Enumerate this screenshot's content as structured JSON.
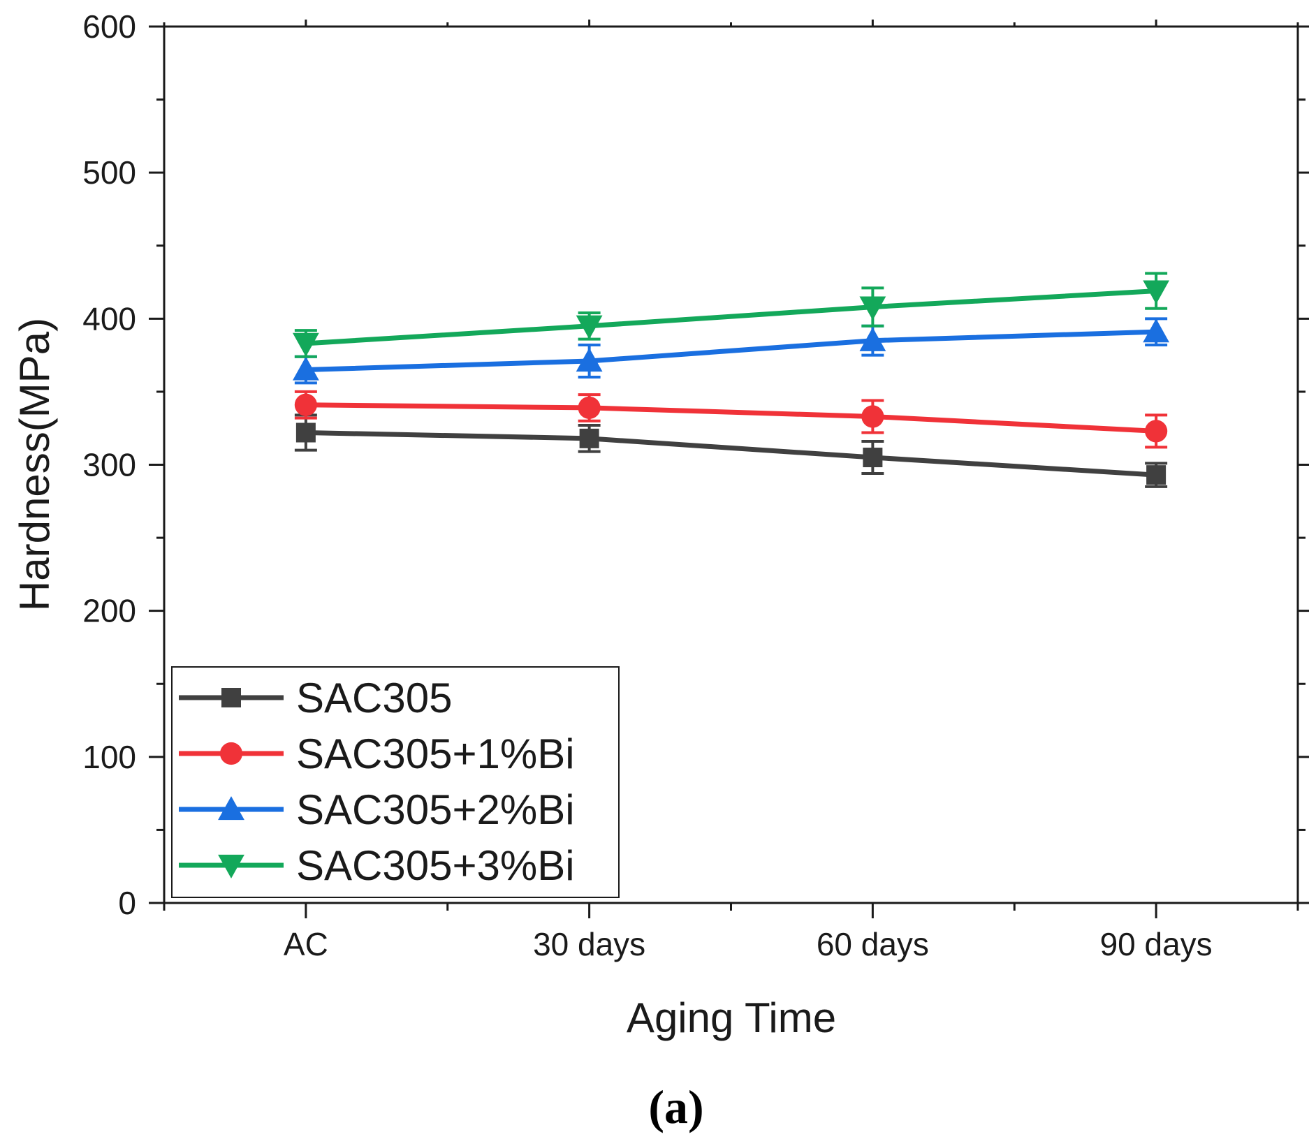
{
  "chart_data": {
    "type": "line",
    "title": "",
    "xlabel": "Aging Time",
    "ylabel": "Hardness(MPa)",
    "ylim": [
      0,
      600
    ],
    "yticks": [
      "0",
      "100",
      "200",
      "300",
      "400",
      "500",
      "600"
    ],
    "categories": [
      "AC",
      "30 days",
      "60 days",
      "90 days"
    ],
    "grid": false,
    "legend_position": "bottom-left",
    "panel_label": "(a)",
    "series": [
      {
        "name": "SAC305",
        "color": "#404040",
        "marker": "square",
        "values": [
          322,
          318,
          305,
          293
        ],
        "errors": [
          12,
          9,
          11,
          8
        ]
      },
      {
        "name": "SAC305+1%Bi",
        "color": "#f03238",
        "marker": "circle",
        "values": [
          341,
          339,
          333,
          323
        ],
        "errors": [
          9,
          9,
          11,
          11
        ]
      },
      {
        "name": "SAC305+2%Bi",
        "color": "#1a6fe0",
        "marker": "triangle-up",
        "values": [
          365,
          371,
          385,
          391
        ],
        "errors": [
          9,
          11,
          10,
          9
        ]
      },
      {
        "name": "SAC305+3%Bi",
        "color": "#13a85a",
        "marker": "triangle-down",
        "values": [
          383,
          395,
          408,
          419
        ],
        "errors": [
          9,
          9,
          13,
          12
        ]
      }
    ]
  }
}
